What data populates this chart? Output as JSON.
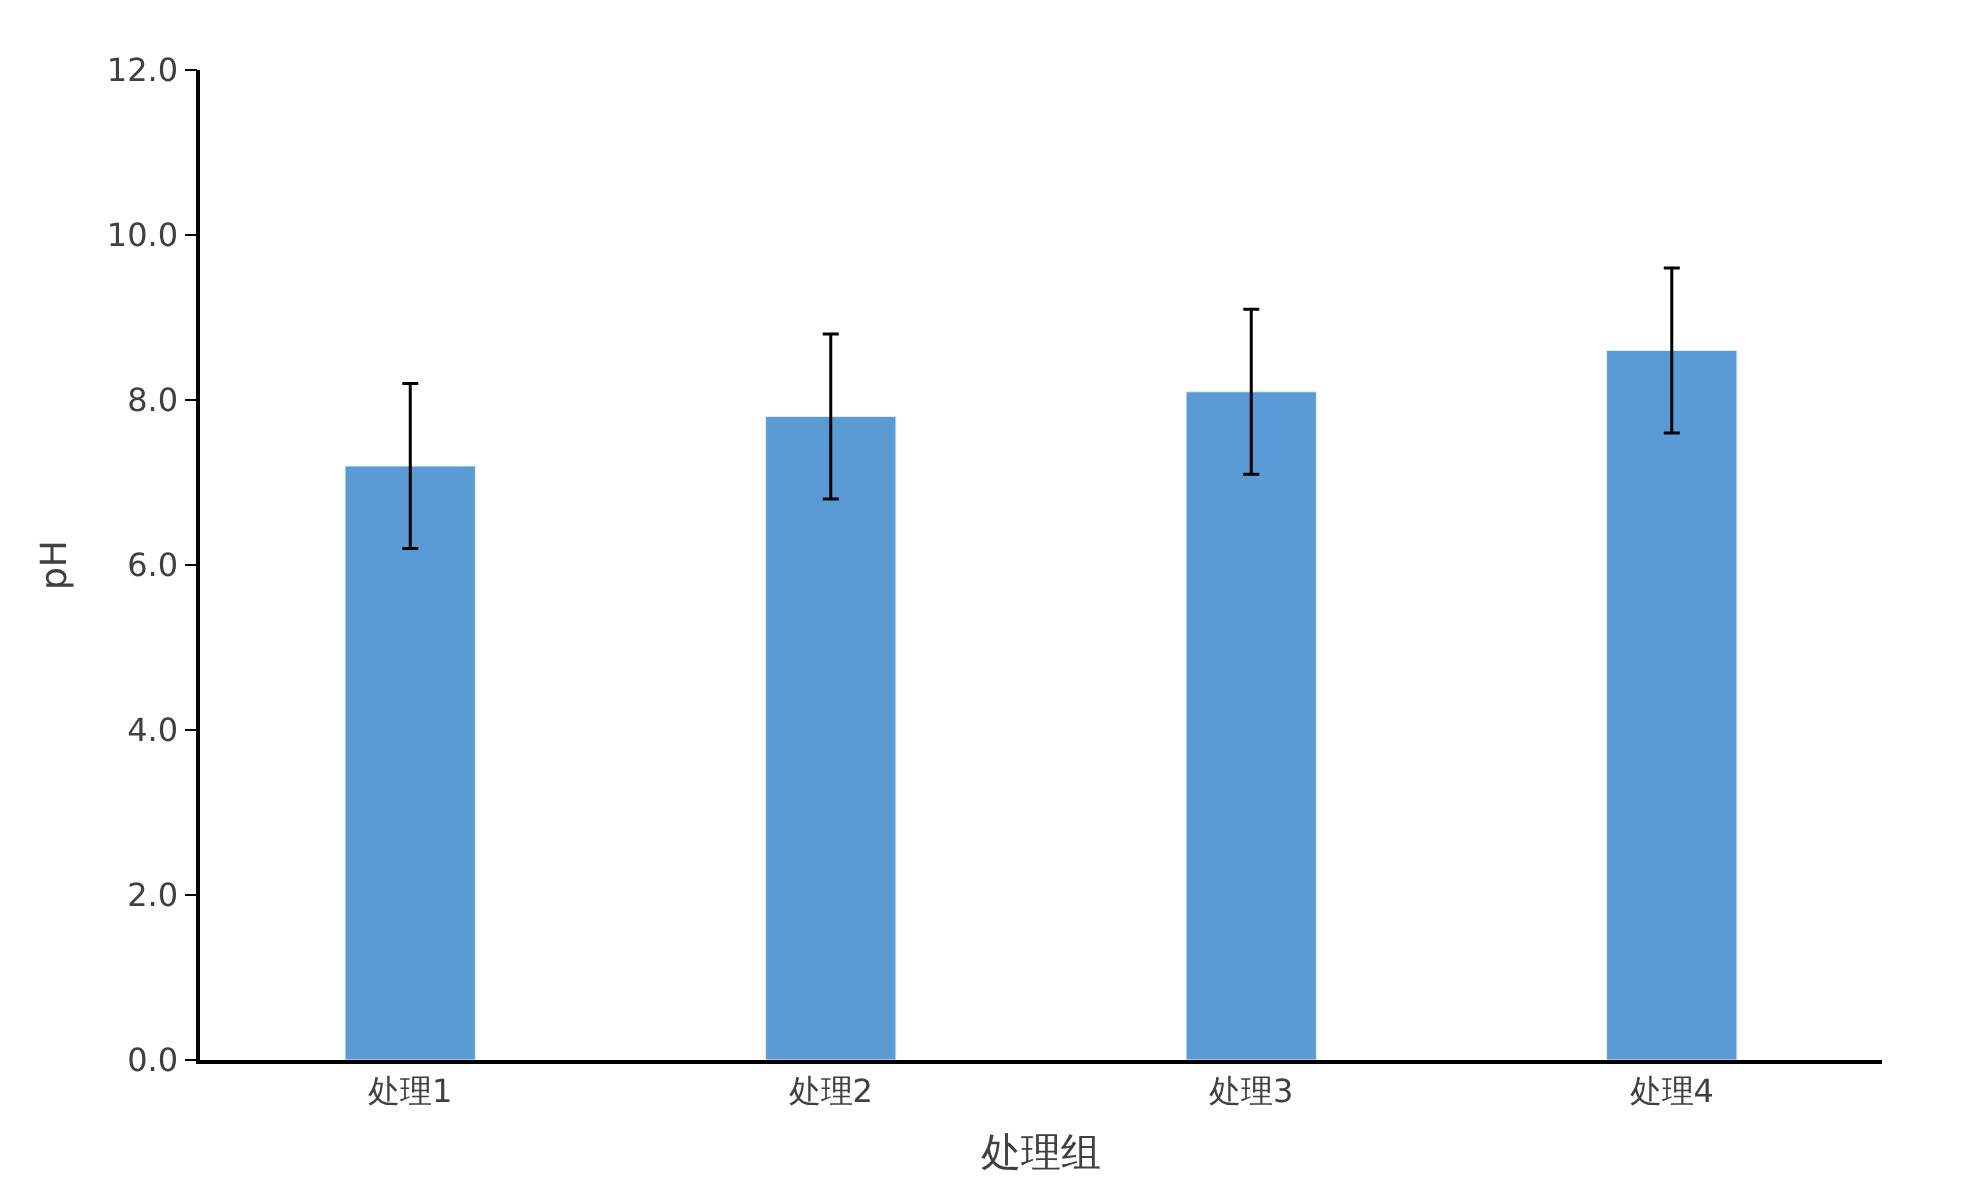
{
  "chart_data": {
    "type": "bar",
    "xlabel": "处理组",
    "ylabel": "pH",
    "categories": [
      "处理1",
      "处理2",
      "处理3",
      "处理4"
    ],
    "values": [
      7.2,
      7.8,
      8.1,
      8.6
    ],
    "errors": [
      1.0,
      1.0,
      1.0,
      1.0
    ],
    "ylim": [
      0,
      12
    ],
    "yticks": [
      {
        "value": 0,
        "label": "0.0"
      },
      {
        "value": 2,
        "label": "2.0"
      },
      {
        "value": 4,
        "label": "4.0"
      },
      {
        "value": 6,
        "label": "6.0"
      },
      {
        "value": 8,
        "label": "8.0"
      },
      {
        "value": 10,
        "label": "10.0"
      },
      {
        "value": 12,
        "label": "12.0"
      }
    ],
    "color": "#5b9bd5"
  }
}
